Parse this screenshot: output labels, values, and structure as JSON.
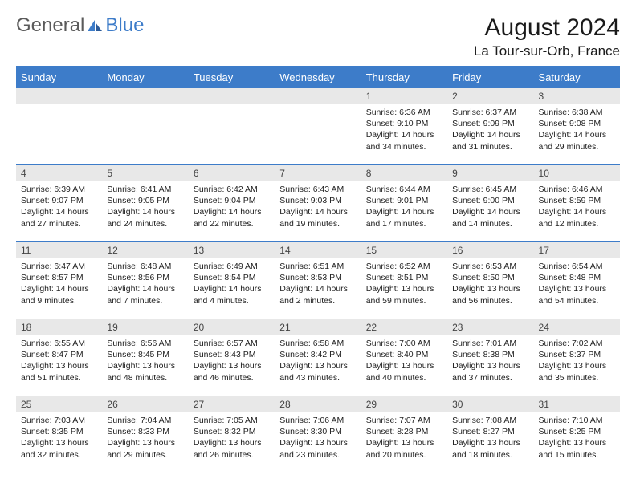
{
  "logo": {
    "text1": "General",
    "text2": "Blue"
  },
  "header": {
    "month": "August 2024",
    "location": "La Tour-sur-Orb, France"
  },
  "weekdays": [
    "Sunday",
    "Monday",
    "Tuesday",
    "Wednesday",
    "Thursday",
    "Friday",
    "Saturday"
  ],
  "colors": {
    "header_bg": "#3d7cc9",
    "header_text": "#ffffff",
    "daynum_bg": "#e8e8e8",
    "border": "#3d7cc9",
    "body_text": "#222222",
    "background": "#ffffff"
  },
  "typography": {
    "title_fontsize": 30,
    "location_fontsize": 17,
    "weekday_fontsize": 13,
    "daynum_fontsize": 12,
    "cell_fontsize": 10.5
  },
  "layout": {
    "columns": 7,
    "weeks": 5,
    "first_day_column": 4
  },
  "days": [
    {
      "n": "1",
      "sunrise": "Sunrise: 6:36 AM",
      "sunset": "Sunset: 9:10 PM",
      "daylight": "Daylight: 14 hours and 34 minutes."
    },
    {
      "n": "2",
      "sunrise": "Sunrise: 6:37 AM",
      "sunset": "Sunset: 9:09 PM",
      "daylight": "Daylight: 14 hours and 31 minutes."
    },
    {
      "n": "3",
      "sunrise": "Sunrise: 6:38 AM",
      "sunset": "Sunset: 9:08 PM",
      "daylight": "Daylight: 14 hours and 29 minutes."
    },
    {
      "n": "4",
      "sunrise": "Sunrise: 6:39 AM",
      "sunset": "Sunset: 9:07 PM",
      "daylight": "Daylight: 14 hours and 27 minutes."
    },
    {
      "n": "5",
      "sunrise": "Sunrise: 6:41 AM",
      "sunset": "Sunset: 9:05 PM",
      "daylight": "Daylight: 14 hours and 24 minutes."
    },
    {
      "n": "6",
      "sunrise": "Sunrise: 6:42 AM",
      "sunset": "Sunset: 9:04 PM",
      "daylight": "Daylight: 14 hours and 22 minutes."
    },
    {
      "n": "7",
      "sunrise": "Sunrise: 6:43 AM",
      "sunset": "Sunset: 9:03 PM",
      "daylight": "Daylight: 14 hours and 19 minutes."
    },
    {
      "n": "8",
      "sunrise": "Sunrise: 6:44 AM",
      "sunset": "Sunset: 9:01 PM",
      "daylight": "Daylight: 14 hours and 17 minutes."
    },
    {
      "n": "9",
      "sunrise": "Sunrise: 6:45 AM",
      "sunset": "Sunset: 9:00 PM",
      "daylight": "Daylight: 14 hours and 14 minutes."
    },
    {
      "n": "10",
      "sunrise": "Sunrise: 6:46 AM",
      "sunset": "Sunset: 8:59 PM",
      "daylight": "Daylight: 14 hours and 12 minutes."
    },
    {
      "n": "11",
      "sunrise": "Sunrise: 6:47 AM",
      "sunset": "Sunset: 8:57 PM",
      "daylight": "Daylight: 14 hours and 9 minutes."
    },
    {
      "n": "12",
      "sunrise": "Sunrise: 6:48 AM",
      "sunset": "Sunset: 8:56 PM",
      "daylight": "Daylight: 14 hours and 7 minutes."
    },
    {
      "n": "13",
      "sunrise": "Sunrise: 6:49 AM",
      "sunset": "Sunset: 8:54 PM",
      "daylight": "Daylight: 14 hours and 4 minutes."
    },
    {
      "n": "14",
      "sunrise": "Sunrise: 6:51 AM",
      "sunset": "Sunset: 8:53 PM",
      "daylight": "Daylight: 14 hours and 2 minutes."
    },
    {
      "n": "15",
      "sunrise": "Sunrise: 6:52 AM",
      "sunset": "Sunset: 8:51 PM",
      "daylight": "Daylight: 13 hours and 59 minutes."
    },
    {
      "n": "16",
      "sunrise": "Sunrise: 6:53 AM",
      "sunset": "Sunset: 8:50 PM",
      "daylight": "Daylight: 13 hours and 56 minutes."
    },
    {
      "n": "17",
      "sunrise": "Sunrise: 6:54 AM",
      "sunset": "Sunset: 8:48 PM",
      "daylight": "Daylight: 13 hours and 54 minutes."
    },
    {
      "n": "18",
      "sunrise": "Sunrise: 6:55 AM",
      "sunset": "Sunset: 8:47 PM",
      "daylight": "Daylight: 13 hours and 51 minutes."
    },
    {
      "n": "19",
      "sunrise": "Sunrise: 6:56 AM",
      "sunset": "Sunset: 8:45 PM",
      "daylight": "Daylight: 13 hours and 48 minutes."
    },
    {
      "n": "20",
      "sunrise": "Sunrise: 6:57 AM",
      "sunset": "Sunset: 8:43 PM",
      "daylight": "Daylight: 13 hours and 46 minutes."
    },
    {
      "n": "21",
      "sunrise": "Sunrise: 6:58 AM",
      "sunset": "Sunset: 8:42 PM",
      "daylight": "Daylight: 13 hours and 43 minutes."
    },
    {
      "n": "22",
      "sunrise": "Sunrise: 7:00 AM",
      "sunset": "Sunset: 8:40 PM",
      "daylight": "Daylight: 13 hours and 40 minutes."
    },
    {
      "n": "23",
      "sunrise": "Sunrise: 7:01 AM",
      "sunset": "Sunset: 8:38 PM",
      "daylight": "Daylight: 13 hours and 37 minutes."
    },
    {
      "n": "24",
      "sunrise": "Sunrise: 7:02 AM",
      "sunset": "Sunset: 8:37 PM",
      "daylight": "Daylight: 13 hours and 35 minutes."
    },
    {
      "n": "25",
      "sunrise": "Sunrise: 7:03 AM",
      "sunset": "Sunset: 8:35 PM",
      "daylight": "Daylight: 13 hours and 32 minutes."
    },
    {
      "n": "26",
      "sunrise": "Sunrise: 7:04 AM",
      "sunset": "Sunset: 8:33 PM",
      "daylight": "Daylight: 13 hours and 29 minutes."
    },
    {
      "n": "27",
      "sunrise": "Sunrise: 7:05 AM",
      "sunset": "Sunset: 8:32 PM",
      "daylight": "Daylight: 13 hours and 26 minutes."
    },
    {
      "n": "28",
      "sunrise": "Sunrise: 7:06 AM",
      "sunset": "Sunset: 8:30 PM",
      "daylight": "Daylight: 13 hours and 23 minutes."
    },
    {
      "n": "29",
      "sunrise": "Sunrise: 7:07 AM",
      "sunset": "Sunset: 8:28 PM",
      "daylight": "Daylight: 13 hours and 20 minutes."
    },
    {
      "n": "30",
      "sunrise": "Sunrise: 7:08 AM",
      "sunset": "Sunset: 8:27 PM",
      "daylight": "Daylight: 13 hours and 18 minutes."
    },
    {
      "n": "31",
      "sunrise": "Sunrise: 7:10 AM",
      "sunset": "Sunset: 8:25 PM",
      "daylight": "Daylight: 13 hours and 15 minutes."
    }
  ]
}
